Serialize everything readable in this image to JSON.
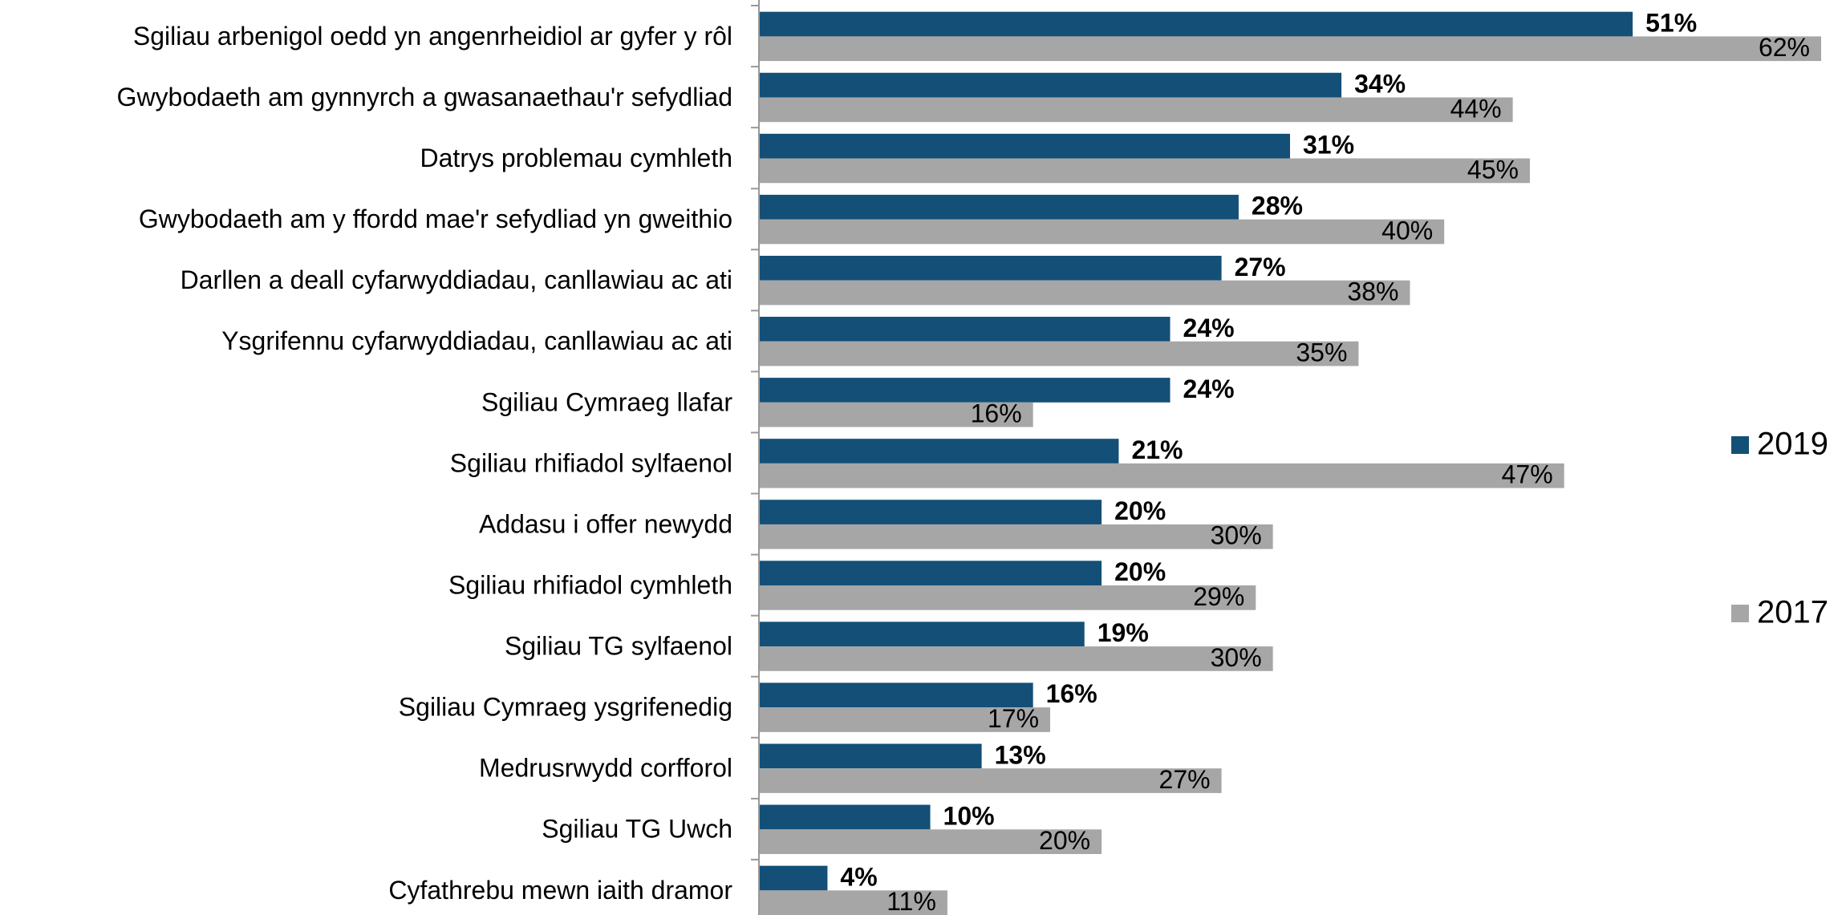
{
  "chart_data": {
    "type": "bar",
    "orientation": "horizontal",
    "categories": [
      "Sgiliau arbenigol oedd yn angenrheidiol ar gyfer y rôl",
      "Gwybodaeth am gynnyrch a gwasanaethau'r sefydliad",
      "Datrys problemau cymhleth",
      "Gwybodaeth am y ffordd mae'r sefydliad yn gweithio",
      "Darllen a deall cyfarwyddiadau, canllawiau ac ati",
      "Ysgrifennu cyfarwyddiadau, canllawiau ac ati",
      "Sgiliau Cymraeg llafar",
      "Sgiliau rhifiadol sylfaenol",
      "Addasu i offer newydd",
      "Sgiliau rhifiadol cymhleth",
      "Sgiliau TG sylfaenol",
      "Sgiliau Cymraeg ysgrifenedig",
      "Medrusrwydd corfforol",
      "Sgiliau TG Uwch",
      "Cyfathrebu mewn iaith dramor"
    ],
    "series": [
      {
        "name": "2019",
        "color": "#134f77",
        "values": [
          51,
          34,
          31,
          28,
          27,
          24,
          24,
          21,
          20,
          20,
          19,
          16,
          13,
          10,
          4
        ],
        "value_labels": [
          "51%",
          "34%",
          "31%",
          "28%",
          "27%",
          "24%",
          "24%",
          "21%",
          "20%",
          "20%",
          "19%",
          "16%",
          "13%",
          "10%",
          "4%"
        ]
      },
      {
        "name": "2017",
        "color": "#a6a6a6",
        "values": [
          62,
          44,
          45,
          40,
          38,
          35,
          16,
          47,
          30,
          29,
          30,
          17,
          27,
          20,
          11
        ],
        "value_labels": [
          "62%",
          "44%",
          "45%",
          "40%",
          "38%",
          "35%",
          "16%",
          "47%",
          "30%",
          "29%",
          "30%",
          "17%",
          "27%",
          "20%",
          "11%"
        ]
      }
    ],
    "legend": "right"
  }
}
